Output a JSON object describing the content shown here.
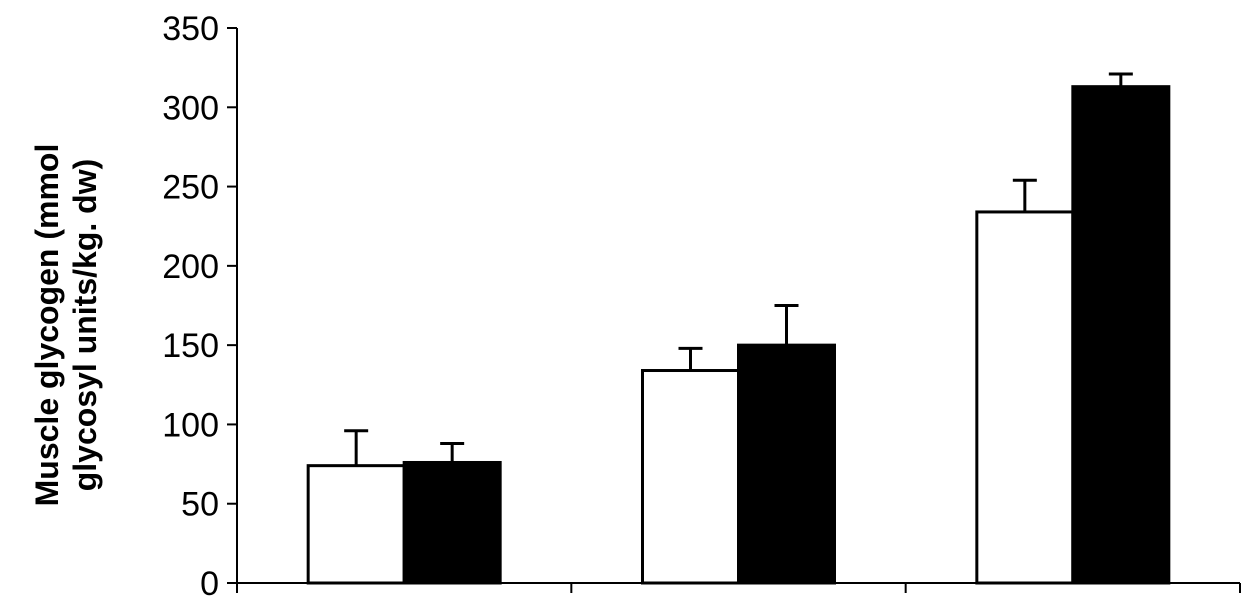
{
  "chart_data": {
    "type": "bar",
    "title": "",
    "xlabel": "",
    "ylabel_lines": [
      "Muscle glycogen (mmol",
      "glycosyl units/kg. dw)"
    ],
    "ylim": [
      0,
      350
    ],
    "yticks": [
      0,
      50,
      100,
      150,
      200,
      250,
      300,
      350
    ],
    "ytick_labels": [
      "0",
      "50",
      "100",
      "150",
      "200",
      "250",
      "300",
      "350"
    ],
    "categories": [
      "",
      "",
      ""
    ],
    "series": [
      {
        "color": "#ffffff",
        "values": [
          74,
          134,
          234
        ],
        "errors": [
          22,
          14,
          20
        ]
      },
      {
        "color": "#000000",
        "values": [
          76,
          150,
          313
        ],
        "errors": [
          12,
          25,
          8
        ]
      }
    ],
    "grid": false,
    "legend": "none"
  }
}
